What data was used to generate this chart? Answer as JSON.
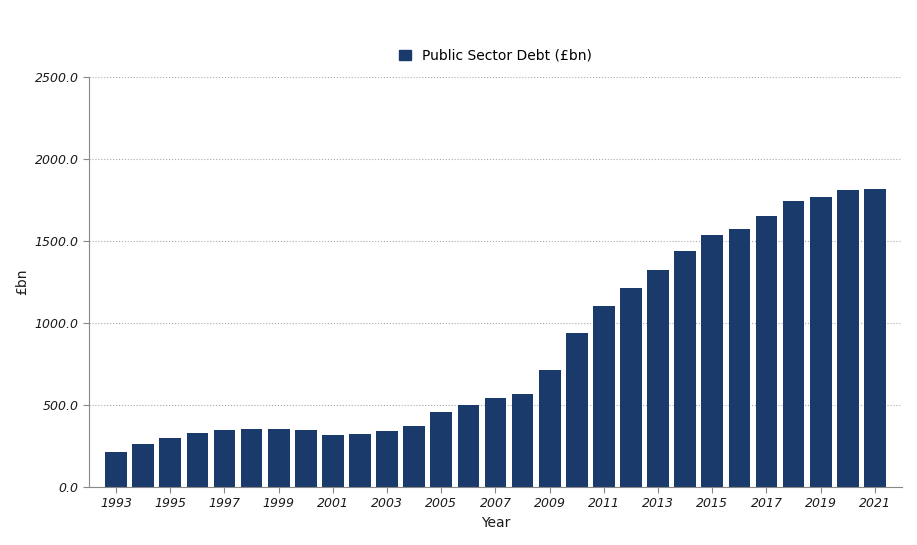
{
  "years": [
    1993,
    1994,
    1995,
    1996,
    1997,
    1998,
    1999,
    2000,
    2001,
    2002,
    2003,
    2004,
    2005,
    2006,
    2007,
    2008,
    2009,
    2010,
    2011,
    2012,
    2013,
    2014,
    2015,
    2016,
    2017,
    2018,
    2019,
    2020,
    2021
  ],
  "values": [
    216.0,
    262.0,
    302.0,
    327.0,
    345.0,
    352.0,
    355.0,
    350.0,
    318.0,
    322.0,
    342.0,
    373.0,
    460.0,
    500.0,
    543.0,
    565.0,
    715.0,
    940.0,
    1107.0,
    1215.0,
    1325.0,
    1443.0,
    1535.0,
    1575.0,
    1655.0,
    1748.0,
    1768.0,
    1810.0,
    1820.0
  ],
  "bar_color": "#1a3a6b",
  "title": "Public Sector Debt (£bn)",
  "xlabel": "Year",
  "ylabel": "£bn",
  "ylim": [
    0,
    2500
  ],
  "yticks": [
    0.0,
    500.0,
    1000.0,
    1500.0,
    2000.0,
    2500.0
  ],
  "xtick_labels": [
    "1993",
    "1995",
    "1997",
    "1999",
    "2001",
    "2003",
    "2005",
    "2007",
    "2009",
    "2011",
    "2013",
    "2015",
    "2017",
    "2019",
    "2021"
  ],
  "xtick_positions": [
    1993,
    1995,
    1997,
    1999,
    2001,
    2003,
    2005,
    2007,
    2009,
    2011,
    2013,
    2015,
    2017,
    2019,
    2021
  ],
  "legend_label": "Public Sector Debt (£bn)",
  "legend_marker_color": "#1a3a6b",
  "background_color": "#ffffff",
  "grid_color": "#aaaaaa",
  "title_fontsize": 10,
  "axis_fontsize": 10,
  "tick_fontsize": 9
}
